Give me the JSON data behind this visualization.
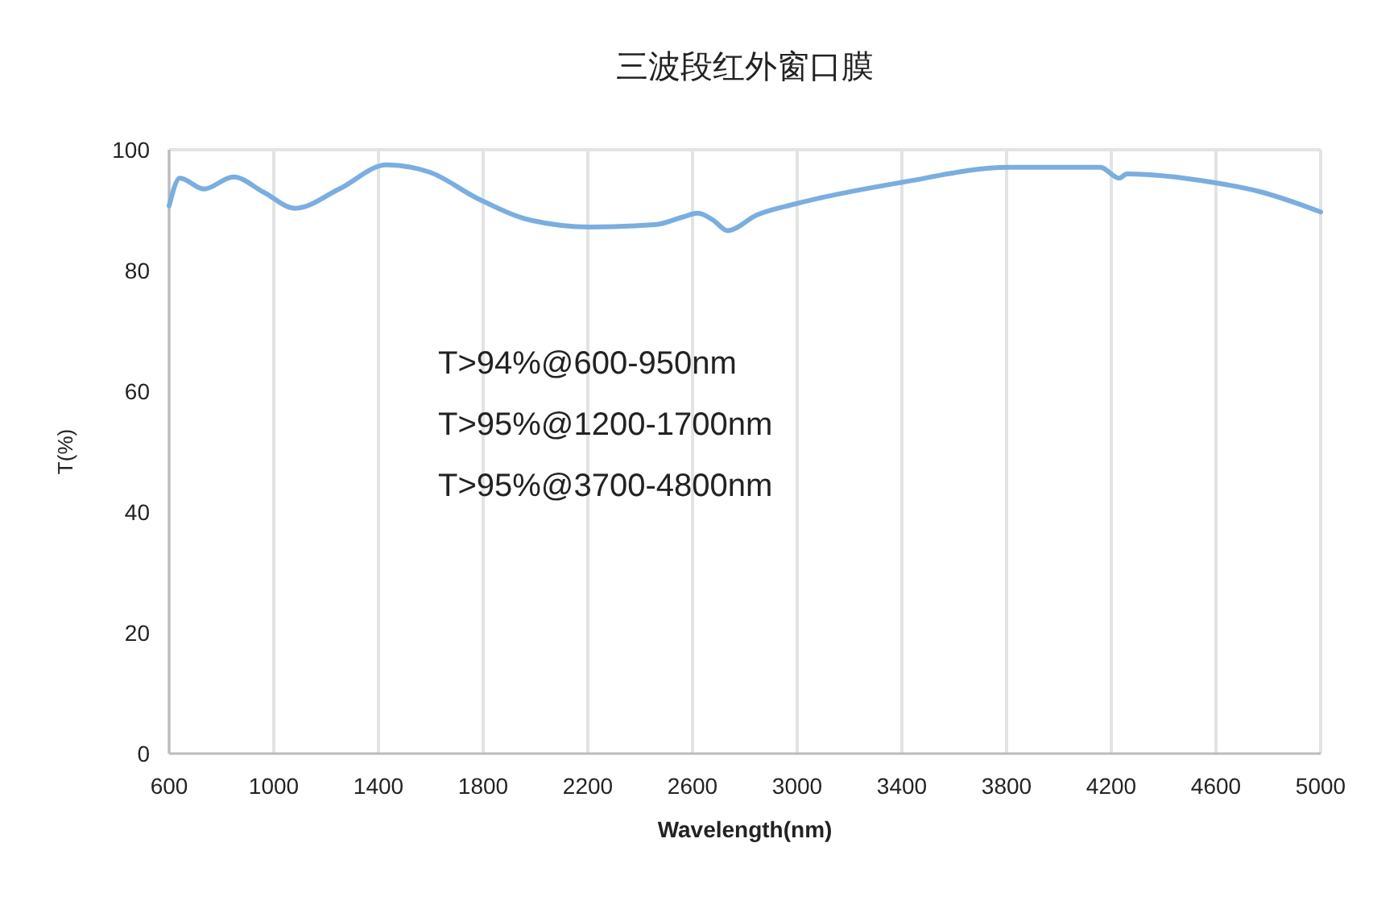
{
  "chart_data": {
    "type": "line",
    "title": "三波段红外窗口膜",
    "xlabel": "Wavelength(nm)",
    "ylabel": "T(%)",
    "x": [
      600,
      641,
      733,
      846,
      960,
      1082,
      1250,
      1431,
      1595,
      1780,
      1985,
      2210,
      2457,
      2559,
      2620,
      2680,
      2733,
      2846,
      2990,
      3400,
      3810,
      4158,
      4230,
      4260,
      4588,
      4773,
      5000
    ],
    "series": [
      {
        "color": "#7aaee0",
        "values": [
          90.7,
          95.3,
          93.5,
          95.5,
          93,
          90.3,
          93.5,
          97.5,
          96.3,
          91.9,
          88.3,
          87.2,
          87.6,
          88.8,
          89.5,
          88.3,
          86.6,
          89.2,
          91,
          94.6,
          97.1,
          97.1,
          95.3,
          96,
          94.6,
          93,
          89.7
        ]
      }
    ],
    "xlim": [
      600,
      5000
    ],
    "xticks": [
      600,
      1000,
      1400,
      1800,
      2200,
      2600,
      3000,
      3400,
      3800,
      4200,
      4600,
      5000
    ],
    "ylim": [
      0,
      100
    ],
    "yticks": [
      0,
      20,
      40,
      60,
      80,
      100
    ],
    "grid": "x",
    "marker": "none",
    "line_style": "solid",
    "annotations": [
      "T>94%@600-950nm",
      "T>95%@1200-1700nm",
      "T>95%@3700-4800nm"
    ]
  }
}
